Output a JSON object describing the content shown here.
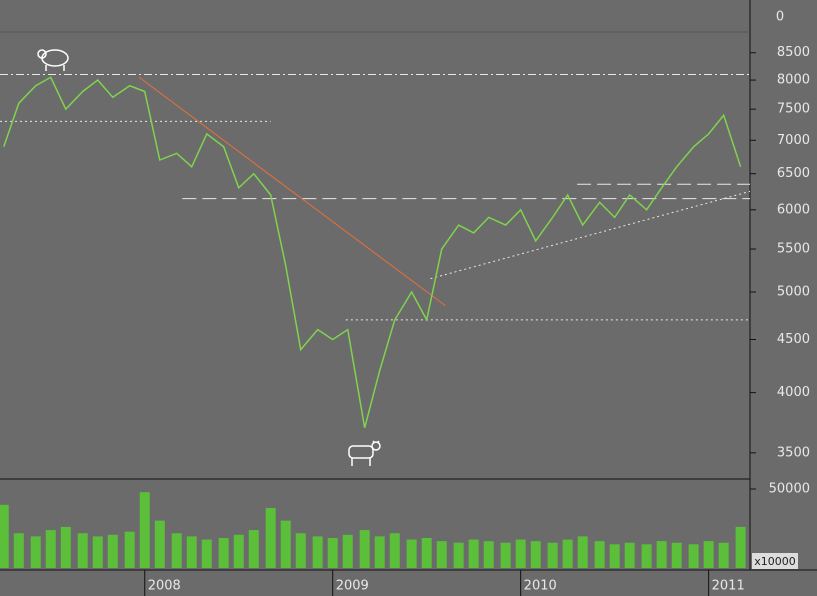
{
  "chart_data": {
    "type": "line",
    "x": [
      2007.25,
      2007.33,
      2007.42,
      2007.5,
      2007.58,
      2007.67,
      2007.75,
      2007.83,
      2007.92,
      2008.0,
      2008.08,
      2008.17,
      2008.25,
      2008.33,
      2008.42,
      2008.5,
      2008.58,
      2008.67,
      2008.75,
      2008.83,
      2008.92,
      2009.0,
      2009.08,
      2009.17,
      2009.25,
      2009.33,
      2009.42,
      2009.5,
      2009.58,
      2009.67,
      2009.75,
      2009.83,
      2009.92,
      2010.0,
      2010.08,
      2010.17,
      2010.25,
      2010.33,
      2010.42,
      2010.5,
      2010.58,
      2010.67,
      2010.75,
      2010.83,
      2010.92,
      2011.0,
      2011.08,
      2011.17
    ],
    "series": [
      {
        "color": "#7fd34e",
        "values": [
          6900,
          7600,
          7900,
          8050,
          7500,
          7800,
          8000,
          7700,
          7900,
          7800,
          6700,
          6800,
          6600,
          7100,
          6900,
          6300,
          6500,
          6200,
          5300,
          4400,
          4600,
          4500,
          4600,
          3700,
          4200,
          4700,
          5000,
          4700,
          5500,
          5800,
          5700,
          5900,
          5800,
          6000,
          5600,
          5900,
          6200,
          5800,
          6100,
          5900,
          6200,
          6000,
          6300,
          6600,
          6900,
          7100,
          7400,
          6600
        ]
      }
    ],
    "log_scale": true,
    "xlim": [
      2007.23,
      2011.22
    ],
    "xticks": [
      2008,
      2009,
      2010,
      2011
    ],
    "ylim": [
      3310,
      8900
    ],
    "yticks": [
      3500,
      4000,
      4500,
      5000,
      5500,
      6000,
      6500,
      7000,
      7500,
      8000,
      8500
    ],
    "indicator_ticks": [
      0
    ],
    "reference_lines": [
      {
        "value": 8100,
        "x": [
          2007.23,
          2011.22
        ],
        "style": "dashdot"
      },
      {
        "value": 7300,
        "x": [
          2007.23,
          2008.67
        ],
        "style": "dotted"
      },
      {
        "value": 6150,
        "x": [
          2008.2,
          2011.22
        ],
        "style": "dashed"
      },
      {
        "value": 6350,
        "x": [
          2010.3,
          2011.22
        ],
        "style": "dashed"
      },
      {
        "value": 4700,
        "x": [
          2009.07,
          2011.22
        ],
        "style": "dotted"
      }
    ],
    "trend_lines": [
      {
        "x": [
          2007.97,
          2009.6
        ],
        "y": [
          8050,
          4850
        ],
        "color": "#e8703a",
        "style": "solid"
      },
      {
        "x": [
          2009.52,
          2011.22
        ],
        "y": [
          5150,
          6250
        ],
        "color": "#e8e8e8",
        "style": "dotted"
      }
    ],
    "volume": {
      "color": "#5cbf3a",
      "unit_label": "x10000",
      "ylim": [
        0,
        55700
      ],
      "yticks": [
        50000
      ],
      "values": [
        40000,
        22000,
        20000,
        24000,
        26000,
        22000,
        20000,
        21000,
        23000,
        48000,
        30000,
        22000,
        20000,
        18000,
        19000,
        21000,
        24000,
        38000,
        30000,
        22000,
        20000,
        19000,
        21000,
        24000,
        20000,
        22000,
        18000,
        19000,
        17000,
        16000,
        18000,
        17000,
        16000,
        18000,
        17000,
        16000,
        18000,
        20000,
        17000,
        15000,
        16000,
        15000,
        17000,
        16000,
        15000,
        17000,
        16000,
        26000
      ]
    }
  }
}
